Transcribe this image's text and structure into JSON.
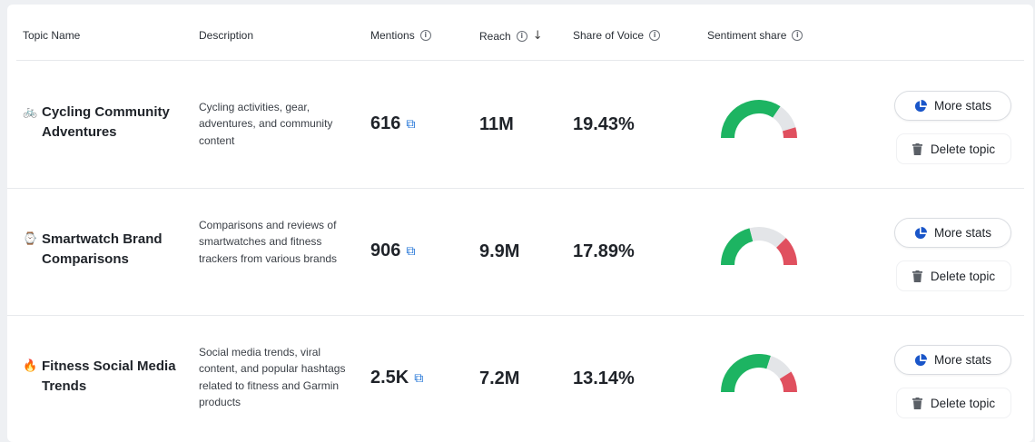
{
  "header": {
    "topic_name": "Topic Name",
    "description": "Description",
    "mentions": "Mentions",
    "reach": "Reach",
    "share_of_voice": "Share of Voice",
    "sentiment_share": "Sentiment share",
    "info_icon": "i",
    "sort_icon": "↓"
  },
  "icons": {
    "external_link": "⧉",
    "info": "info-icon",
    "sort": "arrow-down-icon",
    "stats": "pie-chart-icon",
    "delete": "trash-icon"
  },
  "colors": {
    "positive": "#1db462",
    "neutral": "#e3e5e8",
    "negative": "#e0505f",
    "link": "#1a6fd6"
  },
  "rows": [
    {
      "emoji": "🚲",
      "name": "Cycling Community Adventures",
      "description": "Cycling activities, gear, adventures, and community content",
      "mentions": "616",
      "reach": "11M",
      "share_of_voice": "19.43%",
      "sentiment": {
        "positive": 0.69,
        "neutral": 0.22,
        "negative": 0.09
      },
      "more_stats": "More stats",
      "delete_topic": "Delete topic"
    },
    {
      "emoji": "⌚",
      "name": "Smartwatch Brand Comparisons",
      "description": "Comparisons and reviews of smartwatches and fitness trackers from various brands",
      "mentions": "906",
      "reach": "9.9M",
      "share_of_voice": "17.89%",
      "sentiment": {
        "positive": 0.42,
        "neutral": 0.33,
        "negative": 0.25
      },
      "more_stats": "More stats",
      "delete_topic": "Delete topic"
    },
    {
      "emoji": "🔥",
      "name": "Fitness Social Media Trends",
      "description": "Social media trends, viral content, and popular hashtags related to fitness and Garmin products",
      "mentions": "2.5K",
      "reach": "7.2M",
      "share_of_voice": "13.14%",
      "sentiment": {
        "positive": 0.6,
        "neutral": 0.22,
        "negative": 0.18
      },
      "more_stats": "More stats",
      "delete_topic": "Delete topic"
    }
  ]
}
